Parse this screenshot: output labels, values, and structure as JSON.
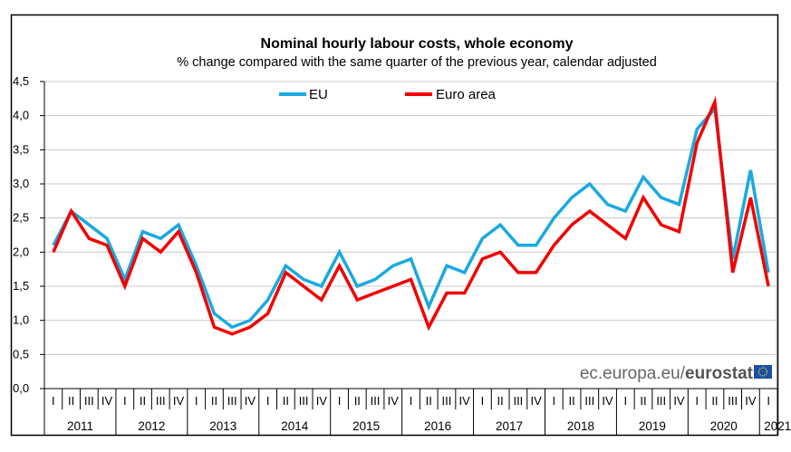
{
  "chart_data": {
    "type": "line",
    "title": "Nominal hourly labour costs, whole economy",
    "subtitle": "% change compared with the same quarter of the previous year, calendar adjusted",
    "xlabel": "",
    "ylabel": "",
    "ylim": [
      0,
      4.5
    ],
    "yticks": [
      0,
      0.5,
      1.0,
      1.5,
      2.0,
      2.5,
      3.0,
      3.5,
      4.0,
      4.5
    ],
    "ytick_labels": [
      "0,0",
      "0,5",
      "1,0",
      "1,5",
      "2,0",
      "2,5",
      "3,0",
      "3,5",
      "4,0",
      "4,5"
    ],
    "grid": true,
    "legend_position": "top-center",
    "quarter_labels": [
      "I",
      "II",
      "III",
      "IV"
    ],
    "years": [
      "2011",
      "2012",
      "2013",
      "2014",
      "2015",
      "2016",
      "2017",
      "2018",
      "2019",
      "2020",
      "2021"
    ],
    "x": [
      "2011-I",
      "2011-II",
      "2011-III",
      "2011-IV",
      "2012-I",
      "2012-II",
      "2012-III",
      "2012-IV",
      "2013-I",
      "2013-II",
      "2013-III",
      "2013-IV",
      "2014-I",
      "2014-II",
      "2014-III",
      "2014-IV",
      "2015-I",
      "2015-II",
      "2015-III",
      "2015-IV",
      "2016-I",
      "2016-II",
      "2016-III",
      "2016-IV",
      "2017-I",
      "2017-II",
      "2017-III",
      "2017-IV",
      "2018-I",
      "2018-II",
      "2018-III",
      "2018-IV",
      "2019-I",
      "2019-II",
      "2019-III",
      "2019-IV",
      "2020-I",
      "2020-II",
      "2020-III",
      "2020-IV",
      "2021-I"
    ],
    "series": [
      {
        "name": "EU",
        "color": "#1aa9e0",
        "values": [
          2.1,
          2.6,
          2.4,
          2.2,
          1.6,
          2.3,
          2.2,
          2.4,
          1.8,
          1.1,
          0.9,
          1.0,
          1.3,
          1.8,
          1.6,
          1.5,
          2.0,
          1.5,
          1.6,
          1.8,
          1.9,
          1.2,
          1.8,
          1.7,
          2.2,
          2.4,
          2.1,
          2.1,
          2.5,
          2.8,
          3.0,
          2.7,
          2.6,
          3.1,
          2.8,
          2.7,
          3.8,
          4.1,
          1.9,
          3.2,
          1.7
        ]
      },
      {
        "name": "Euro area",
        "color": "#f20000",
        "values": [
          2.0,
          2.6,
          2.2,
          2.1,
          1.5,
          2.2,
          2.0,
          2.3,
          1.7,
          0.9,
          0.8,
          0.9,
          1.1,
          1.7,
          1.5,
          1.3,
          1.8,
          1.3,
          1.4,
          1.5,
          1.6,
          0.9,
          1.4,
          1.4,
          1.9,
          2.0,
          1.7,
          1.7,
          2.1,
          2.4,
          2.6,
          2.4,
          2.2,
          2.8,
          2.4,
          2.3,
          3.6,
          4.2,
          1.7,
          2.8,
          1.5
        ]
      }
    ],
    "source_text_regular": "ec.europa.eu/",
    "source_text_bold": "eurostat"
  },
  "colors": {
    "gridline": "#c8c8c8",
    "frame": "#000000",
    "flag_blue": "#1a4fa8",
    "flag_star": "#ffdd00"
  }
}
